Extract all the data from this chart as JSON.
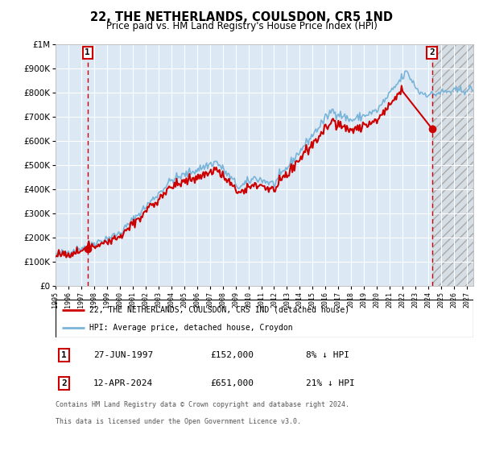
{
  "title": "22, THE NETHERLANDS, COULSDON, CR5 1ND",
  "subtitle": "Price paid vs. HM Land Registry's House Price Index (HPI)",
  "legend_line1": "22, THE NETHERLANDS, COULSDON, CR5 1ND (detached house)",
  "legend_line2": "HPI: Average price, detached house, Croydon",
  "annotation1_date": "27-JUN-1997",
  "annotation1_price": "£152,000",
  "annotation1_hpi": "8% ↓ HPI",
  "annotation2_date": "12-APR-2024",
  "annotation2_price": "£651,000",
  "annotation2_hpi": "21% ↓ HPI",
  "footnote1": "Contains HM Land Registry data © Crown copyright and database right 2024.",
  "footnote2": "This data is licensed under the Open Government Licence v3.0.",
  "sale1_year": 1997.49,
  "sale1_value": 152000,
  "sale2_year": 2024.28,
  "sale2_value": 651000,
  "hpi_color": "#7ab4d8",
  "property_color": "#cc0000",
  "dashed_line_color": "#cc0000",
  "background_color": "#dce9f5",
  "grid_color": "#ffffff",
  "ylim": [
    0,
    1000000
  ],
  "xlim_start": 1995.0,
  "xlim_end": 2027.5,
  "future_start": 2024.28
}
